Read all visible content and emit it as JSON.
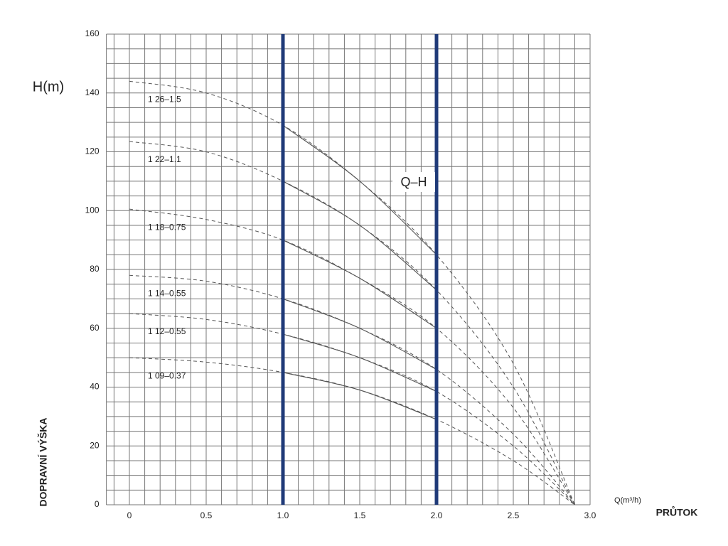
{
  "chart_data": {
    "type": "line",
    "y_label": "H(m)",
    "y_title": "DOPRAVNÍ VÝŠKA",
    "x_label": "Q(m³/h)",
    "x_title": "PRŮTOK",
    "annotation": "Q–H",
    "x": [
      0,
      0.5,
      1.0,
      1.5,
      2.0,
      2.5,
      2.9
    ],
    "series": [
      {
        "name": "1 26–1.5",
        "color": "#555555",
        "values": [
          144,
          140,
          129,
          110,
          85,
          48,
          0
        ]
      },
      {
        "name": "1 22–1.1",
        "color": "#555555",
        "values": [
          123.5,
          120,
          110,
          95,
          73,
          40,
          0
        ]
      },
      {
        "name": "1 18–0.75",
        "color": "#555555",
        "values": [
          100.5,
          97,
          90,
          77,
          60,
          33,
          0
        ]
      },
      {
        "name": "1 14–0.55",
        "color": "#555555",
        "values": [
          78,
          76,
          70,
          60,
          46,
          24,
          0
        ]
      },
      {
        "name": "1 12–0.55",
        "color": "#555555",
        "values": [
          65,
          63,
          58,
          50,
          38.5,
          20,
          0
        ]
      },
      {
        "name": "1 09–0.37",
        "color": "#555555",
        "values": [
          50,
          48.5,
          45,
          39,
          29,
          15,
          0
        ]
      }
    ],
    "markers": [
      1.0,
      2.0
    ],
    "marker_color": "#1f3a78",
    "xlim": [
      -0.15,
      3.0
    ],
    "xticks": [
      0,
      0.5,
      {
        "value": 1,
        "label": "1.0"
      },
      1.5,
      {
        "value": 2,
        "label": "2.0"
      },
      2.5,
      {
        "value": 3,
        "label": "3.0"
      }
    ],
    "ylim": [
      0,
      160
    ],
    "yticks": [
      0,
      20,
      40,
      60,
      80,
      100,
      120,
      140,
      160
    ],
    "grid": true
  }
}
